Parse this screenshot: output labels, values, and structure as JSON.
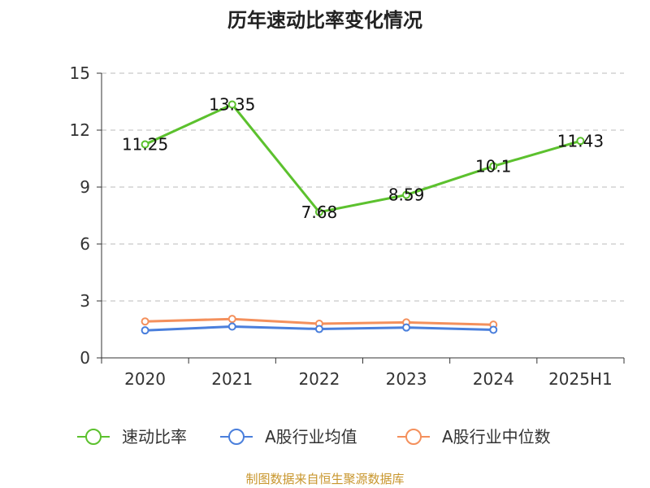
{
  "source_note": "制图数据来自恒生聚源数据库",
  "colors": {
    "axis": "#333333",
    "grid": "#bbbbbb",
    "source": "#c8962d"
  },
  "chart_data": {
    "type": "line",
    "title": "历年速动比率变化情况",
    "categories": [
      "2020",
      "2021",
      "2022",
      "2023",
      "2024",
      "2025H1"
    ],
    "y_ticks": [
      "0",
      "3",
      "6",
      "9",
      "12",
      "15"
    ],
    "ylim": [
      0,
      15
    ],
    "grid": "horizontal-dashed",
    "legend_position": "bottom",
    "series": [
      {
        "name": "速动比率",
        "color": "#5cc12e",
        "values": [
          11.25,
          13.35,
          7.68,
          8.59,
          10.1,
          11.43
        ],
        "labels": [
          "11.25",
          "13.35",
          "7.68",
          "8.59",
          "10.1",
          "11.43"
        ]
      },
      {
        "name": "A股行业均值",
        "color": "#4a7fdc",
        "values": [
          1.45,
          1.65,
          1.52,
          1.6,
          1.48,
          null
        ]
      },
      {
        "name": "A股行业中位数",
        "color": "#f4905c",
        "values": [
          1.92,
          2.05,
          1.8,
          1.87,
          1.75,
          null
        ]
      }
    ]
  }
}
